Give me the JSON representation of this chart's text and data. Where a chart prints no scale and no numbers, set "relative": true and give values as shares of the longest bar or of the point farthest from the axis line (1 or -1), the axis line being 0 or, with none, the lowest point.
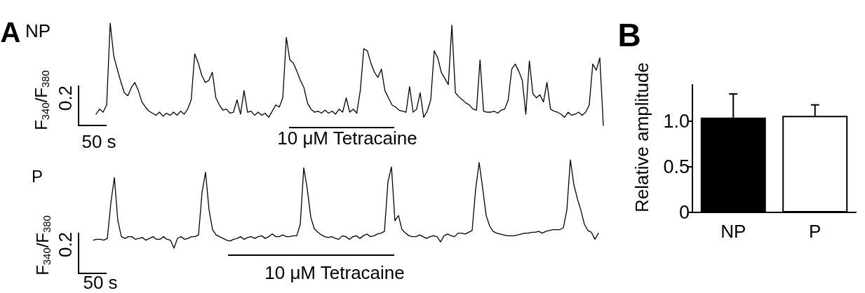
{
  "chart_data": [
    {
      "type": "line",
      "title": "NP",
      "ylabel": "F$_{340}$/F$_{380}$",
      "relative": true,
      "color": "#000000",
      "categories": [
        null,
        null,
        null,
        null,
        null,
        null,
        null,
        null,
        null,
        null,
        null,
        null,
        null,
        null,
        null,
        null,
        null,
        null,
        null,
        null,
        null,
        null,
        null,
        null,
        null,
        null,
        null,
        null,
        null,
        null,
        null,
        null,
        null,
        null,
        null,
        null,
        null,
        null,
        null,
        null,
        null,
        null,
        null,
        null,
        null,
        null,
        null,
        null,
        null,
        null,
        null,
        null,
        null,
        null,
        null,
        null,
        null,
        null,
        null,
        null,
        null,
        null,
        null,
        null,
        null,
        null,
        null,
        null,
        null,
        null,
        null,
        null,
        null,
        null,
        null,
        null,
        null,
        null,
        null,
        null,
        null,
        null,
        null,
        null,
        null,
        null,
        null,
        null,
        null,
        null,
        null,
        null,
        null,
        null,
        null,
        null,
        null,
        null,
        null,
        null,
        null,
        null,
        null,
        null,
        null,
        null,
        null,
        null,
        null,
        null,
        null,
        null,
        null,
        null,
        null,
        null,
        null,
        null,
        null,
        null,
        null,
        null,
        null,
        null,
        null,
        null,
        null,
        null,
        null,
        null,
        null,
        null,
        null,
        null,
        null,
        null,
        null,
        null,
        null,
        null,
        null,
        null,
        null,
        null,
        null
      ],
      "values": [
        0.11,
        0.16,
        0.13,
        0.2,
        1.0,
        0.68,
        0.55,
        0.43,
        0.32,
        0.29,
        0.37,
        0.42,
        0.34,
        0.23,
        0.18,
        0.14,
        0.12,
        0.1,
        0.13,
        0.09,
        0.12,
        0.1,
        0.13,
        0.1,
        0.14,
        0.11,
        0.16,
        0.25,
        0.7,
        0.61,
        0.49,
        0.42,
        0.44,
        0.52,
        0.27,
        0.2,
        0.15,
        0.16,
        0.12,
        0.13,
        0.25,
        0.11,
        0.34,
        0.13,
        0.14,
        0.1,
        0.13,
        0.1,
        0.12,
        0.08,
        0.14,
        0.2,
        0.18,
        0.27,
        0.86,
        0.64,
        0.61,
        0.53,
        0.44,
        0.37,
        0.22,
        0.16,
        0.13,
        0.14,
        0.12,
        0.15,
        0.12,
        0.14,
        0.11,
        0.16,
        0.13,
        0.27,
        0.13,
        0.16,
        0.12,
        0.34,
        0.75,
        0.73,
        0.61,
        0.52,
        0.47,
        0.55,
        0.34,
        0.27,
        0.2,
        0.18,
        0.15,
        0.14,
        0.13,
        0.38,
        0.13,
        0.16,
        0.32,
        0.08,
        0.14,
        0.25,
        0.73,
        0.66,
        0.52,
        0.46,
        0.4,
        0.98,
        0.32,
        0.28,
        0.25,
        0.22,
        0.2,
        0.16,
        0.15,
        0.64,
        0.14,
        0.13,
        0.13,
        0.14,
        0.12,
        0.15,
        0.16,
        0.25,
        0.55,
        0.6,
        0.53,
        0.44,
        0.11,
        0.63,
        0.31,
        0.27,
        0.3,
        0.23,
        0.42,
        0.16,
        0.14,
        0.13,
        0.11,
        0.08,
        0.13,
        0.1,
        0.11,
        0.13,
        0.1,
        0.13,
        0.2,
        0.6,
        0.54,
        0.66,
        0
      ],
      "annotations": [
        "A",
        "0.2",
        "50 s",
        "10 μM Tetracaine"
      ]
    },
    {
      "type": "line",
      "title": "P",
      "ylabel": "F$_{340}$/F$_{380}$",
      "relative": true,
      "color": "#000000",
      "categories": [
        null,
        null,
        null,
        null,
        null,
        null,
        null,
        null,
        null,
        null,
        null,
        null,
        null,
        null,
        null,
        null,
        null,
        null,
        null,
        null,
        null,
        null,
        null,
        null,
        null,
        null,
        null,
        null,
        null,
        null,
        null,
        null,
        null,
        null,
        null,
        null,
        null,
        null,
        null,
        null,
        null,
        null,
        null,
        null,
        null,
        null,
        null,
        null,
        null,
        null,
        null,
        null,
        null,
        null,
        null,
        null,
        null,
        null,
        null,
        null,
        null,
        null,
        null,
        null,
        null,
        null,
        null,
        null,
        null,
        null,
        null,
        null,
        null,
        null,
        null,
        null,
        null,
        null,
        null,
        null,
        null,
        null,
        null,
        null,
        null,
        null,
        null,
        null,
        null,
        null,
        null,
        null,
        null,
        null,
        null,
        null,
        null,
        null,
        null,
        null,
        null,
        null,
        null,
        null,
        null,
        null,
        null,
        null,
        null,
        null,
        null,
        null,
        null,
        null,
        null,
        null,
        null,
        null,
        null,
        null,
        null,
        null,
        null,
        null,
        null,
        null,
        null,
        null,
        null,
        null,
        null,
        null,
        null,
        null,
        null,
        null,
        null,
        null,
        null,
        null,
        null,
        null,
        null,
        null,
        null
      ],
      "values": [
        0.09,
        0.1,
        0.1,
        0.09,
        0.11,
        0.51,
        0.8,
        0.31,
        0.13,
        0.11,
        0.13,
        0.13,
        0.1,
        0.11,
        0.12,
        0.09,
        0.11,
        0.13,
        0.1,
        0.1,
        0.13,
        0.1,
        0.09,
        0,
        0.11,
        0.13,
        0.1,
        0.11,
        0.13,
        0.13,
        0.15,
        0.63,
        0.86,
        0.43,
        0.21,
        0.15,
        0.13,
        0.11,
        0.09,
        0.08,
        0.1,
        0.11,
        0.13,
        0.1,
        0.12,
        0.13,
        0.11,
        0.13,
        0.14,
        0.11,
        0.13,
        0.16,
        0.13,
        0.13,
        0.15,
        0.13,
        0.13,
        0.14,
        0.14,
        0.27,
        0.91,
        0.67,
        0.35,
        0.22,
        0.18,
        0.15,
        0.13,
        0.12,
        0.13,
        0.11,
        0.1,
        0.14,
        0.13,
        0.1,
        0.13,
        0.14,
        0.11,
        0.14,
        0.16,
        0.13,
        0.14,
        0.16,
        0.17,
        0.19,
        0.75,
        0.92,
        0.31,
        0.37,
        0.21,
        0.17,
        0.14,
        0.13,
        0.13,
        0.15,
        0.13,
        0.11,
        0.13,
        0.14,
        0.13,
        0.07,
        0.14,
        0.16,
        0.14,
        0.13,
        0.17,
        0.17,
        0.16,
        0.18,
        0.2,
        0.67,
        0.97,
        0.68,
        0.37,
        0.25,
        0.19,
        0.17,
        0.16,
        0.15,
        0.14,
        0.14,
        0.14,
        0.15,
        0.16,
        0.17,
        0.17,
        0.18,
        0.18,
        0.19,
        0.17,
        0.19,
        0.2,
        0.21,
        0.21,
        0.21,
        0.23,
        0.43,
        1.0,
        0.72,
        0.56,
        0.43,
        0.27,
        0.2,
        0.18,
        0.1,
        0.17
      ],
      "annotations": [
        "0.2",
        "50 s",
        "10 μM Tetracaine"
      ]
    },
    {
      "type": "bar",
      "ylabel": "Relative amplitude",
      "categories": [
        "NP",
        "P"
      ],
      "values": [
        1.04,
        1.06
      ],
      "colors": [
        "#000000",
        "#ffffff"
      ],
      "errors": [
        [
          1.04,
          1.3
        ],
        [
          1.06,
          1.18
        ]
      ],
      "ylim": [
        0,
        1.4
      ],
      "yticks": [
        0,
        0.5,
        {
          "value": 1,
          "label": "1.0"
        }
      ],
      "grid": false,
      "annotations": [
        "B"
      ]
    }
  ]
}
